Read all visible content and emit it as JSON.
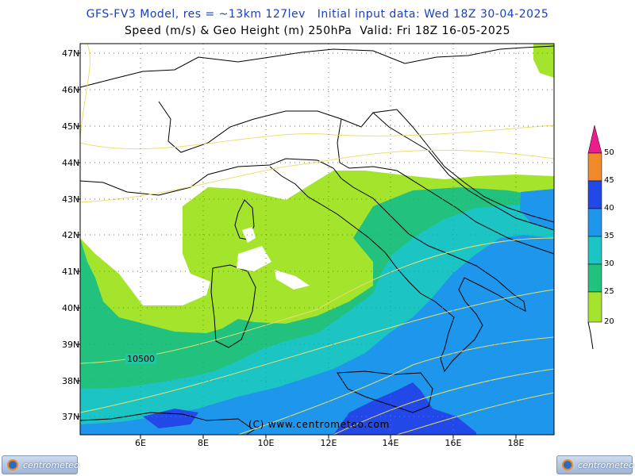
{
  "header": {
    "title_line1": "GFS-FV3 Model, res = ~13km 127lev   Initial input data: Wed 18Z 30-04-2025",
    "title_line2": "Speed (m/s) & Geo Height (m) 250hPa  Valid: Fri 18Z 16-05-2025"
  },
  "map": {
    "latitude_labels": [
      "47N",
      "46N",
      "45N",
      "44N",
      "43N",
      "42N",
      "41N",
      "40N",
      "39N",
      "38N",
      "37N"
    ],
    "longitude_labels": [
      "6E",
      "8E",
      "10E",
      "12E",
      "14E",
      "16E",
      "18E"
    ],
    "contour_label": "10500",
    "copyright": "(C) www.centrometeo.com",
    "colors": {
      "speed_20_25": "#a4e42c",
      "speed_25_30": "#22c27e",
      "speed_30_35": "#1cc4c4",
      "speed_35_40": "#1e96ec",
      "speed_40_45": "#2248e8",
      "speed_45_50": "#f08a2a",
      "speed_50_plus": "#ec1c8c",
      "geopotential_contour": "#e8e070",
      "coastline": "#000000"
    }
  },
  "colorbar": {
    "labels": [
      "50",
      "45",
      "40",
      "35",
      "30",
      "25",
      "20"
    ],
    "units": "m/s"
  },
  "branding": {
    "logo_left": "centrometeo",
    "logo_right": "centrometeo"
  }
}
